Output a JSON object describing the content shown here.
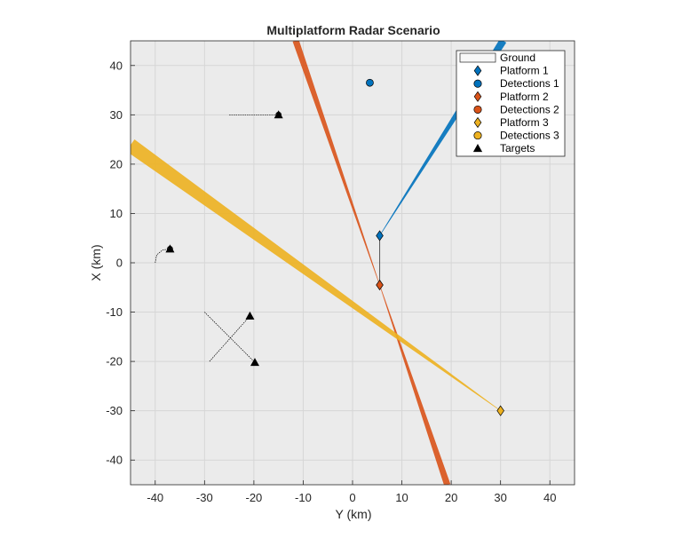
{
  "chart_data": {
    "type": "scatter",
    "title": "Multiplatform Radar Scenario",
    "xlabel": "Y (km)",
    "ylabel": "X (km)",
    "xlim": [
      -45,
      45
    ],
    "ylim": [
      -45,
      45
    ],
    "xticks": [
      -40,
      -30,
      -20,
      -10,
      0,
      10,
      20,
      30,
      40
    ],
    "yticks": [
      -40,
      -30,
      -20,
      -10,
      0,
      10,
      20,
      30,
      40
    ],
    "grid": true,
    "legend_position": "top-right",
    "colors": {
      "axes_bg": "#ebebeb",
      "grid": "#d6d6d6",
      "platform1": "#0072bd",
      "platform2": "#d95319",
      "platform3": "#edb120",
      "targets": "#000000",
      "ground": "#f7f7f7"
    },
    "legend": [
      {
        "label": "Ground",
        "marker": "patch",
        "color": "#f7f7f7"
      },
      {
        "label": "Platform 1",
        "marker": "diamond",
        "color": "#0072bd"
      },
      {
        "label": "Detections 1",
        "marker": "circle",
        "color": "#0072bd"
      },
      {
        "label": "Platform 2",
        "marker": "diamond",
        "color": "#d95319"
      },
      {
        "label": "Detections 2",
        "marker": "circle",
        "color": "#d95319"
      },
      {
        "label": "Platform 3",
        "marker": "diamond",
        "color": "#edb120"
      },
      {
        "label": "Detections 3",
        "marker": "circle",
        "color": "#edb120"
      },
      {
        "label": "Targets",
        "marker": "triangle",
        "color": "#000000"
      }
    ],
    "platforms": [
      {
        "name": "Platform 1",
        "y": 5.5,
        "x": 5.5,
        "color": "#0072bd"
      },
      {
        "name": "Platform 2",
        "y": 5.5,
        "x": -4.5,
        "color": "#d95319"
      },
      {
        "name": "Platform 3",
        "y": 30,
        "x": -30,
        "color": "#edb120"
      }
    ],
    "platform_path": [
      [
        5.5,
        5.5
      ],
      [
        5.5,
        -4.5
      ]
    ],
    "beams": [
      {
        "color": "#0072bd",
        "origin": [
          5.5,
          5.5
        ],
        "end": [
          30.5,
          45
        ],
        "halfwidth": [
          0.0,
          0.7
        ]
      },
      {
        "color": "#d95319",
        "origin": [
          5.5,
          -4.5
        ],
        "end": [
          -11.5,
          45
        ],
        "halfwidth": [
          0.0,
          0.6
        ]
      },
      {
        "color": "#d95319",
        "origin": [
          5.5,
          -4.5
        ],
        "end": [
          19.2,
          -45
        ],
        "halfwidth": [
          0.0,
          0.6
        ]
      },
      {
        "color": "#edb120",
        "origin": [
          30,
          -30
        ],
        "end": [
          -45,
          23.8
        ],
        "halfwidth": [
          0.0,
          1.4
        ]
      }
    ],
    "detections": [
      {
        "series": "Detections 1",
        "y": 3.5,
        "x": 36.5,
        "color": "#0072bd"
      }
    ],
    "targets": [
      {
        "y": -15,
        "x": 30
      },
      {
        "y": -37,
        "x": 2.8
      },
      {
        "y": -20.8,
        "x": -10.8
      },
      {
        "y": -19.8,
        "x": -20.2
      }
    ],
    "target_tracks": [
      {
        "points": [
          [
            -25,
            30
          ],
          [
            -15,
            30
          ]
        ]
      },
      {
        "points": [
          [
            -40,
            0
          ],
          [
            -39.7,
            1.6
          ],
          [
            -38.5,
            2.6
          ],
          [
            -37,
            2.8
          ]
        ]
      },
      {
        "points": [
          [
            -29,
            -20
          ],
          [
            -20.8,
            -10.8
          ]
        ]
      },
      {
        "points": [
          [
            -30,
            -10
          ],
          [
            -19.8,
            -20.2
          ]
        ]
      }
    ],
    "target_detections": [
      {
        "y": -15,
        "x": 30
      },
      {
        "y": -37,
        "x": 2.8
      }
    ]
  }
}
